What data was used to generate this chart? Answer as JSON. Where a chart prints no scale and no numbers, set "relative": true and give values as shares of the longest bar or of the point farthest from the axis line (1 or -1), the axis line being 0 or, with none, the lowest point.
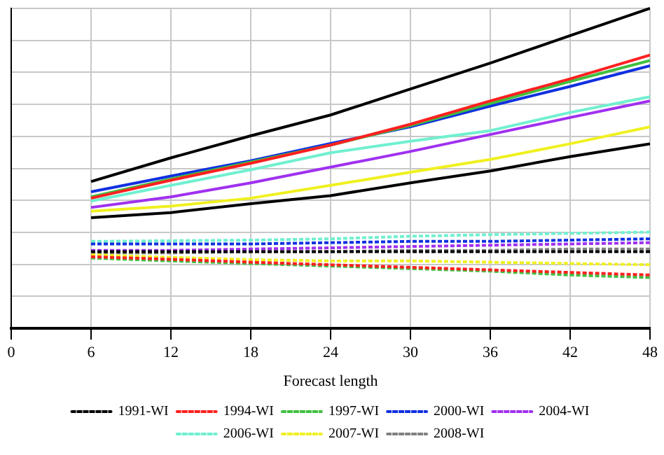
{
  "chart_data": {
    "type": "line",
    "xlabel": "Forecast length",
    "x": [
      6,
      12,
      18,
      24,
      30,
      36,
      42,
      48
    ],
    "xlim": [
      0,
      48
    ],
    "xticks": [
      0,
      6,
      12,
      18,
      24,
      30,
      36,
      42,
      48
    ],
    "relative": true,
    "grid": true,
    "legend": "bottom",
    "marker": "none",
    "series": [
      {
        "color": "#000000",
        "line_style": "solid",
        "values": [
          0.459,
          0.533,
          0.602,
          0.667,
          0.748,
          0.829,
          0.915,
          1
        ]
      },
      {
        "color": "#ff2020",
        "line_style": "solid",
        "values": [
          0.407,
          0.463,
          0.516,
          0.573,
          0.638,
          0.711,
          0.78,
          0.854
        ]
      },
      {
        "color": "#40c040",
        "line_style": "solid",
        "values": [
          0.411,
          0.467,
          0.52,
          0.573,
          0.634,
          0.703,
          0.772,
          0.837
        ]
      },
      {
        "color": "#1030e0",
        "line_style": "solid",
        "values": [
          0.427,
          0.476,
          0.524,
          0.578,
          0.63,
          0.695,
          0.756,
          0.821
        ]
      },
      {
        "color": "#70f0d0",
        "line_style": "solid",
        "values": [
          0.398,
          0.447,
          0.496,
          0.549,
          0.585,
          0.618,
          0.675,
          0.724
        ]
      },
      {
        "color": "#a030f0",
        "line_style": "solid",
        "values": [
          0.378,
          0.411,
          0.455,
          0.504,
          0.553,
          0.606,
          0.659,
          0.711
        ]
      },
      {
        "color": "#f0f020",
        "line_style": "solid",
        "values": [
          0.366,
          0.382,
          0.407,
          0.447,
          0.488,
          0.528,
          0.577,
          0.63
        ]
      },
      {
        "color": "#000000",
        "line_style": "solid",
        "values": [
          0.346,
          0.362,
          0.39,
          0.415,
          0.455,
          0.492,
          0.537,
          0.577
        ]
      },
      {
        "name": "1991-WI",
        "color": "#000000",
        "line_style": "dashed",
        "values": [
          0.24,
          0.24,
          0.24,
          0.24,
          0.24,
          0.24,
          0.24,
          0.24
        ]
      },
      {
        "name": "1994-WI",
        "color": "#ff2020",
        "line_style": "dashed",
        "values": [
          0.224,
          0.216,
          0.207,
          0.199,
          0.191,
          0.183,
          0.175,
          0.167
        ]
      },
      {
        "name": "1997-WI",
        "color": "#40c040",
        "line_style": "dashed",
        "values": [
          0.22,
          0.211,
          0.203,
          0.195,
          0.187,
          0.179,
          0.167,
          0.159
        ]
      },
      {
        "name": "2000-WI",
        "color": "#1030e0",
        "line_style": "dashed",
        "values": [
          0.264,
          0.264,
          0.264,
          0.268,
          0.272,
          0.272,
          0.276,
          0.28
        ]
      },
      {
        "name": "2004-WI",
        "color": "#a030f0",
        "line_style": "dashed",
        "values": [
          0.244,
          0.244,
          0.248,
          0.252,
          0.256,
          0.26,
          0.264,
          0.268
        ]
      },
      {
        "name": "2006-WI",
        "color": "#70f0d0",
        "line_style": "dashed",
        "values": [
          0.272,
          0.274,
          0.276,
          0.28,
          0.288,
          0.293,
          0.297,
          0.301
        ]
      },
      {
        "name": "2007-WI",
        "color": "#f0f020",
        "line_style": "dashed",
        "values": [
          0.23,
          0.222,
          0.215,
          0.211,
          0.211,
          0.207,
          0.203,
          0.199
        ]
      },
      {
        "name": "2008-WI",
        "color": "#808080",
        "line_style": "dashed",
        "values": [
          0.236,
          0.236,
          0.24,
          0.24,
          0.244,
          0.244,
          0.248,
          0.248
        ]
      }
    ]
  }
}
